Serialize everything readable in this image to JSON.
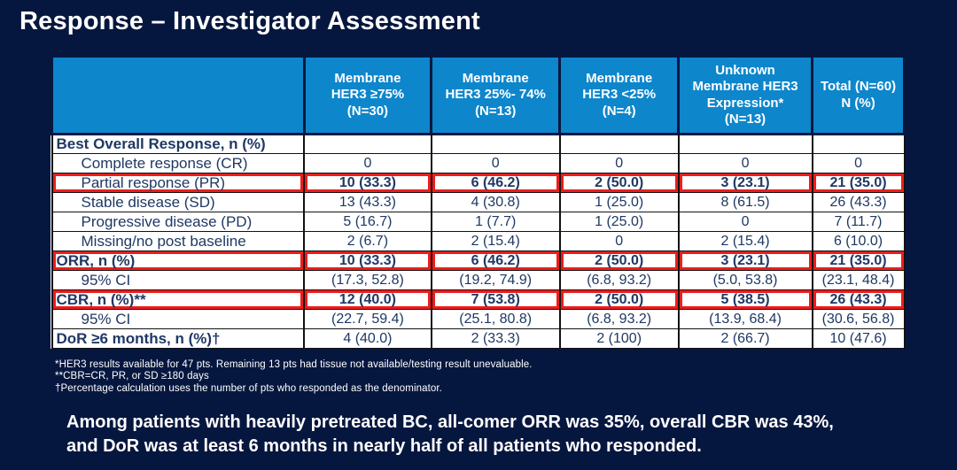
{
  "slide": {
    "title": "Response – Investigator Assessment",
    "colors": {
      "background": "#06173f",
      "header_blue": "#0d86cc",
      "body_text": "#1f3864",
      "highlight_red": "#ee1c1c",
      "text_white": "#ffffff"
    }
  },
  "table": {
    "columns": [
      "",
      "Membrane\nHER3 ≥75%\n(N=30)",
      "Membrane\nHER3 25%- 74%\n(N=13)",
      "Membrane\nHER3 <25%\n(N=4)",
      "Unknown\nMembrane HER3\nExpression*\n(N=13)",
      "Total (N=60)\nN (%)"
    ],
    "rows": [
      {
        "label": "Best Overall Response, n (%)",
        "values": [
          "",
          "",
          "",
          "",
          ""
        ],
        "labelBold": true,
        "indent": false,
        "valuesBold": false,
        "highlight": false
      },
      {
        "label": "Complete response (CR)",
        "values": [
          "0",
          "0",
          "0",
          "0",
          "0"
        ],
        "labelBold": false,
        "indent": true,
        "valuesBold": false,
        "highlight": false
      },
      {
        "label": "Partial response (PR)",
        "values": [
          "10 (33.3)",
          "6 (46.2)",
          "2 (50.0)",
          "3 (23.1)",
          "21 (35.0)"
        ],
        "labelBold": false,
        "indent": true,
        "valuesBold": true,
        "highlight": true
      },
      {
        "label": "Stable disease (SD)",
        "values": [
          "13 (43.3)",
          "4 (30.8)",
          "1 (25.0)",
          "8 (61.5)",
          "26 (43.3)"
        ],
        "labelBold": false,
        "indent": true,
        "valuesBold": false,
        "highlight": false
      },
      {
        "label": "Progressive disease (PD)",
        "values": [
          "5 (16.7)",
          "1 (7.7)",
          "1 (25.0)",
          "0",
          "7 (11.7)"
        ],
        "labelBold": false,
        "indent": true,
        "valuesBold": false,
        "highlight": false
      },
      {
        "label": "Missing/no post baseline",
        "values": [
          "2 (6.7)",
          "2 (15.4)",
          "0",
          "2 (15.4)",
          "6 (10.0)"
        ],
        "labelBold": false,
        "indent": true,
        "valuesBold": false,
        "highlight": false
      },
      {
        "label": "ORR, n (%)",
        "values": [
          "10 (33.3)",
          "6 (46.2)",
          "2 (50.0)",
          "3 (23.1)",
          "21 (35.0)"
        ],
        "labelBold": true,
        "indent": false,
        "valuesBold": true,
        "highlight": true
      },
      {
        "label": "95% CI",
        "values": [
          "(17.3, 52.8)",
          "(19.2, 74.9)",
          "(6.8, 93.2)",
          "(5.0, 53.8)",
          "(23.1, 48.4)"
        ],
        "labelBold": false,
        "indent": true,
        "valuesBold": false,
        "highlight": false
      },
      {
        "label": "CBR, n (%)**",
        "values": [
          "12 (40.0)",
          "7 (53.8)",
          "2 (50.0)",
          "5 (38.5)",
          "26 (43.3)"
        ],
        "labelBold": true,
        "indent": false,
        "valuesBold": true,
        "highlight": true
      },
      {
        "label": "95% CI",
        "values": [
          "(22.7, 59.4)",
          "(25.1, 80.8)",
          "(6.8, 93.2)",
          "(13.9, 68.4)",
          "(30.6, 56.8)"
        ],
        "labelBold": false,
        "indent": true,
        "valuesBold": false,
        "highlight": false
      },
      {
        "label": "DoR ≥6 months, n (%)†",
        "values": [
          "4 (40.0)",
          "2 (33.3)",
          "2 (100)",
          "2 (66.7)",
          "10 (47.6)"
        ],
        "labelBold": true,
        "indent": false,
        "valuesBold": false,
        "highlight": false
      }
    ]
  },
  "footnotes": {
    "line1": "*HER3 results available for 47 pts. Remaining 13 pts had tissue not available/testing result unevaluable.",
    "line2": "**CBR=CR, PR, or SD ≥180 days",
    "line3": "†Percentage calculation uses the number of pts who responded as the denominator."
  },
  "summary": {
    "line1": "Among patients with heavily pretreated BC, all-comer ORR was 35%, overall CBR was 43%,",
    "line2": "and DoR was at least 6 months in nearly half of all patients who responded."
  }
}
